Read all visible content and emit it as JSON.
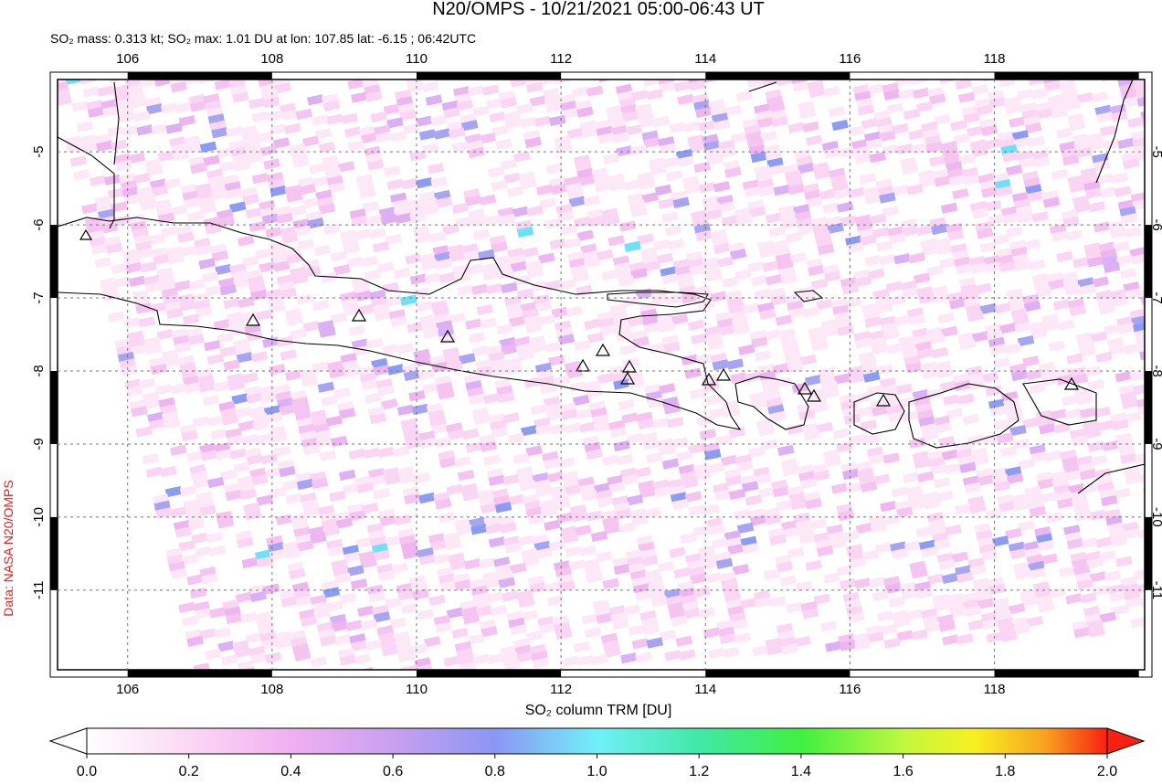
{
  "title": "N20/OMPS - 10/21/2021 05:00-06:43 UT",
  "subtitle": "SO₂ mass: 0.313 kt; SO₂ max: 1.01 DU at lon: 107.85 lat: -6.15 ; 06:42UTC",
  "credit": "Data: NASA N20/OMPS",
  "map": {
    "xlim": [
      105.03,
      120.08
    ],
    "ylim": [
      -12.09,
      -4.01
    ],
    "xticks": [
      106,
      108,
      110,
      112,
      114,
      116,
      118
    ],
    "yticks": [
      -5,
      -6,
      -7,
      -8,
      -9,
      -10,
      -11
    ],
    "grid": true
  },
  "colorbar": {
    "label": "SO₂ column TRM [DU]",
    "lim": [
      0,
      2
    ],
    "ticks": [
      {
        "value": 0,
        "label": "0.0"
      },
      {
        "value": 0.2,
        "label": "0.2"
      },
      {
        "value": 0.4,
        "label": "0.4"
      },
      {
        "value": 0.6,
        "label": "0.6"
      },
      {
        "value": 0.8,
        "label": "0.8"
      },
      {
        "value": 1,
        "label": "1.0"
      },
      {
        "value": 1.2,
        "label": "1.2"
      },
      {
        "value": 1.4,
        "label": "1.4"
      },
      {
        "value": 1.6,
        "label": "1.6"
      },
      {
        "value": 1.8,
        "label": "1.8"
      },
      {
        "value": 2,
        "label": "2.0"
      }
    ]
  }
}
